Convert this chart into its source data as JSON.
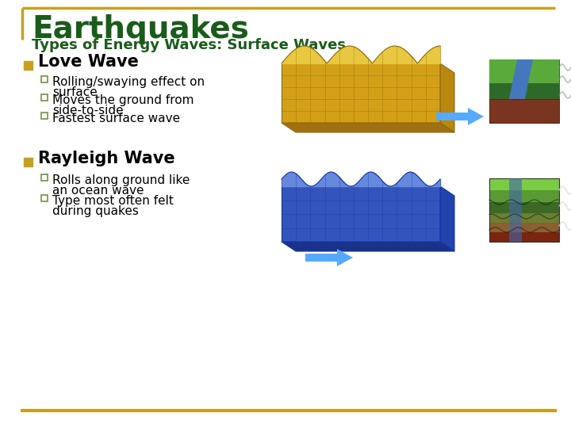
{
  "title": "Earthquakes",
  "subtitle": "Types of Energy Waves: Surface Waves",
  "title_color": "#1a5c1a",
  "subtitle_color": "#1a5c1a",
  "background_color": "#ffffff",
  "border_color": "#c8a020",
  "bullet_color": "#c8a020",
  "sub_bullet_color": "#7a9a50",
  "text_color": "#000000",
  "section1_title": "Love Wave",
  "section1_bullets": [
    "Rolling/swaying effect on\nsurface",
    "Moves the ground from\nside-to-side",
    "Fastest surface wave"
  ],
  "section2_title": "Rayleigh Wave",
  "section2_bullets": [
    "Rolls along ground like\nan ocean wave",
    "Type most often felt\nduring quakes"
  ],
  "arrow_color": "#55aaff",
  "footer_color": "#c8a020",
  "love_wave_color": "#d4a017",
  "love_wave_dark": "#8B6914",
  "love_wave_light": "#e8c840",
  "rayleigh_wave_color": "#3355bb",
  "rayleigh_wave_dark": "#1133aa",
  "rayleigh_wave_light": "#6688dd"
}
